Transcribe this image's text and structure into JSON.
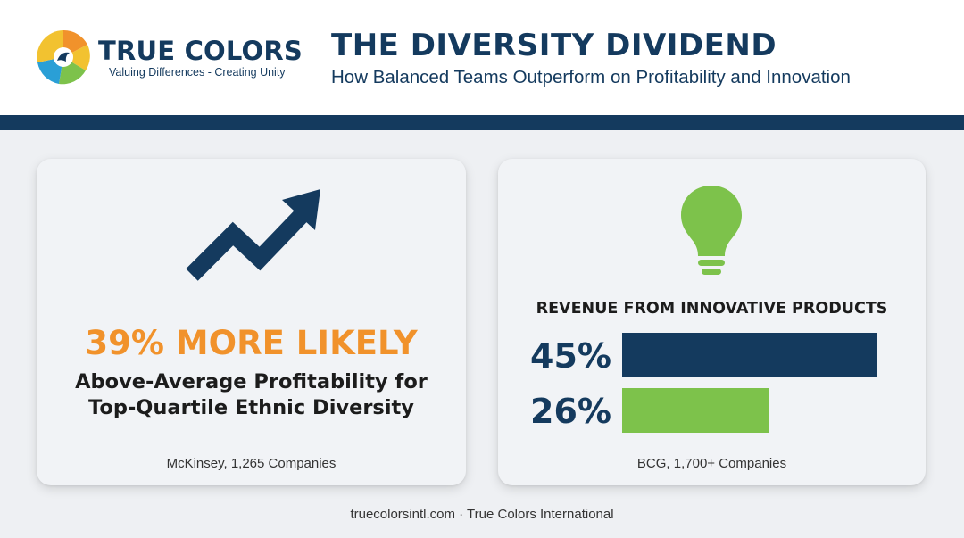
{
  "brand": {
    "name": "TRUE COLORS",
    "tagline": "Valuing Differences - Creating Unity"
  },
  "header": {
    "title": "THE DIVERSITY DIVIDEND",
    "subtitle": "How Balanced Teams Outperform on Profitability and Innovation"
  },
  "cards": {
    "profitability": {
      "icon": "trending-up-arrow-icon",
      "headline": "39% MORE LIKELY",
      "description_line1": "Above-Average Profitability for",
      "description_line2": "Top-Quartile Ethnic Diversity",
      "source": "McKinsey, 1,265 Companies"
    },
    "innovation": {
      "icon": "lightbulb-icon",
      "source": "BCG, 1,700+ Companies"
    }
  },
  "chart_data": {
    "type": "bar",
    "orientation": "horizontal",
    "title": "REVENUE FROM INNOVATIVE PRODUCTS",
    "categories": [
      "45%",
      "26%"
    ],
    "values": [
      45,
      26
    ],
    "colors": [
      "#143a5e",
      "#7dc24b"
    ],
    "xlim": [
      0,
      45
    ],
    "grid": false,
    "legend": "none"
  },
  "footer": {
    "text": "truecolorsintl.com · True Colors International"
  },
  "colors": {
    "navy": "#143a5e",
    "orange": "#f1922b",
    "green": "#7dc24b",
    "blue": "#2a9fd6",
    "yellow": "#f2c230"
  }
}
